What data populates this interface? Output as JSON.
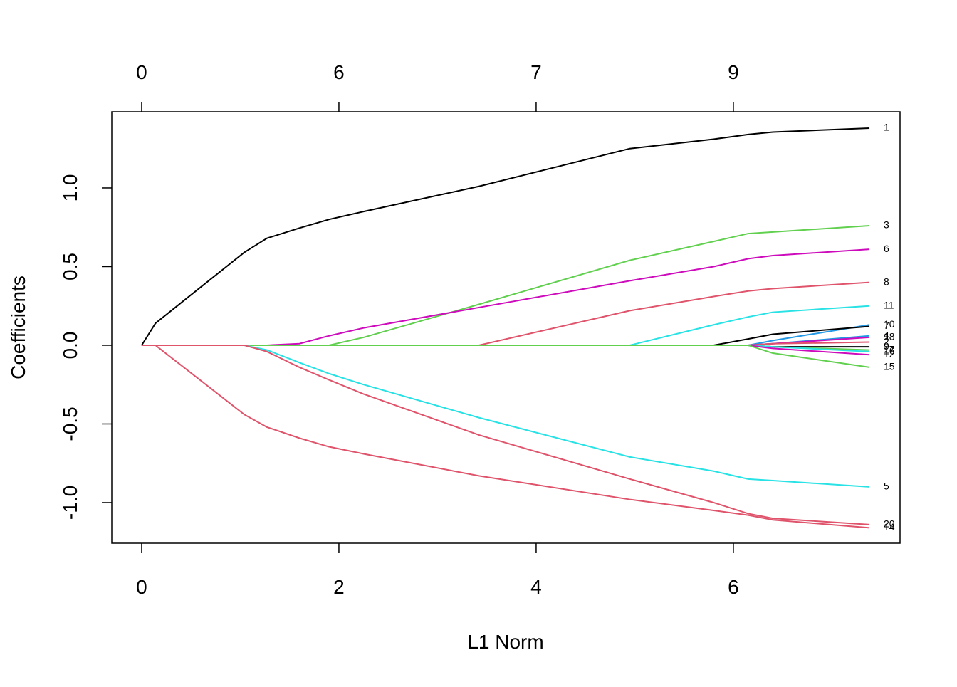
{
  "chart_data": {
    "type": "line",
    "x_label": "L1 Norm",
    "y_label": "Coefficients",
    "x": [
      0,
      0.14,
      1.04,
      1.27,
      1.6,
      1.9,
      2.25,
      3.42,
      4.95,
      5.8,
      6.15,
      6.4,
      7.38
    ],
    "xlim": [
      -0.303,
      7.69
    ],
    "ylim": [
      -1.258,
      1.484
    ],
    "xticks": [
      0,
      2,
      4,
      6
    ],
    "x2ticks": [
      {
        "value": 0,
        "label": "0"
      },
      {
        "value": 2,
        "label": "6"
      },
      {
        "value": 4,
        "label": "7"
      },
      {
        "value": 6,
        "label": "9"
      }
    ],
    "yticks": [
      {
        "value": -1,
        "label": "-1.0"
      },
      -0.5,
      {
        "value": 0,
        "label": "0.0"
      },
      0.5,
      {
        "value": 1,
        "label": "1.0"
      }
    ],
    "series": [
      {
        "name": "1",
        "color": "#000000",
        "values": [
          0,
          0.14,
          0.59,
          0.68,
          0.745,
          0.8,
          0.85,
          1.01,
          1.25,
          1.31,
          1.34,
          1.355,
          1.38
        ]
      },
      {
        "name": "3",
        "color": "#61D04F",
        "values": [
          0,
          0,
          0,
          0,
          0,
          0,
          0.05,
          0.26,
          0.54,
          0.66,
          0.71,
          0.72,
          0.76
        ]
      },
      {
        "name": "6",
        "color": "#CD0BBC",
        "values": [
          0,
          0,
          0,
          0,
          0.01,
          0.06,
          0.11,
          0.24,
          0.41,
          0.5,
          0.55,
          0.57,
          0.61
        ]
      },
      {
        "name": "8",
        "color": "#DF536B",
        "values": [
          0,
          0,
          0,
          0,
          0,
          0,
          0,
          0,
          0.22,
          0.31,
          0.345,
          0.36,
          0.4
        ]
      },
      {
        "name": "11",
        "color": "#28E2E5",
        "values": [
          0,
          0,
          0,
          0,
          0,
          0,
          0,
          0,
          0,
          0.13,
          0.18,
          0.21,
          0.25
        ]
      },
      {
        "name": "10",
        "color": "#2297E6",
        "values": [
          0,
          0,
          0,
          0,
          0,
          0,
          0,
          0,
          0,
          0,
          0,
          0.03,
          0.13
        ]
      },
      {
        "name": "7",
        "color": "#000000",
        "values": [
          0,
          0,
          0,
          0,
          0,
          0,
          0,
          0,
          0,
          0,
          0.04,
          0.07,
          0.12
        ]
      },
      {
        "name": "4",
        "color": "#2297E6",
        "values": [
          0,
          0,
          0,
          0,
          0,
          0,
          0,
          0,
          0,
          0,
          0,
          0.01,
          0.06
        ]
      },
      {
        "name": "18",
        "color": "#CD0BBC",
        "values": [
          0,
          0,
          0,
          0,
          0,
          0,
          0,
          0,
          0,
          0,
          0,
          0.01,
          0.05
        ]
      },
      {
        "name": "2",
        "color": "#DF536B",
        "values": [
          0,
          0,
          0,
          0,
          0,
          0,
          0,
          0,
          0,
          0,
          0,
          0.01,
          0.02
        ]
      },
      {
        "name": "9",
        "color": "#000000",
        "values": [
          0,
          0,
          0,
          0,
          0,
          0,
          0,
          0,
          0,
          0,
          0,
          -0.01,
          -0.01
        ]
      },
      {
        "name": "17",
        "color": "#61D04F",
        "values": [
          0,
          0,
          0,
          0,
          0,
          0,
          0,
          0,
          0,
          0,
          0,
          -0.01,
          -0.03
        ]
      },
      {
        "name": "16",
        "color": "#28E2E5",
        "values": [
          0,
          0,
          0,
          0,
          0,
          0,
          0,
          0,
          0,
          0,
          0,
          -0.01,
          -0.04
        ]
      },
      {
        "name": "12",
        "color": "#CD0BBC",
        "values": [
          0,
          0,
          0,
          0,
          0,
          0,
          0,
          0,
          0,
          0,
          0,
          -0.02,
          -0.06
        ]
      },
      {
        "name": "15",
        "color": "#61D04F",
        "values": [
          0,
          0,
          0,
          0,
          0,
          0,
          0,
          0,
          0,
          0,
          0,
          -0.05,
          -0.14
        ]
      },
      {
        "name": "5",
        "color": "#28E2E5",
        "values": [
          0,
          0,
          0,
          -0.03,
          -0.11,
          -0.18,
          -0.25,
          -0.46,
          -0.71,
          -0.8,
          -0.85,
          -0.86,
          -0.9
        ]
      },
      {
        "name": "20",
        "color": "#DF536B",
        "values": [
          0,
          0,
          0,
          -0.04,
          -0.14,
          -0.22,
          -0.31,
          -0.57,
          -0.85,
          -1.0,
          -1.07,
          -1.1,
          -1.14
        ]
      },
      {
        "name": "14",
        "color": "#DF536B",
        "values": [
          0,
          0,
          -0.44,
          -0.52,
          -0.59,
          -0.645,
          -0.69,
          -0.83,
          -0.98,
          -1.05,
          -1.08,
          -1.11,
          -1.16
        ]
      }
    ]
  }
}
